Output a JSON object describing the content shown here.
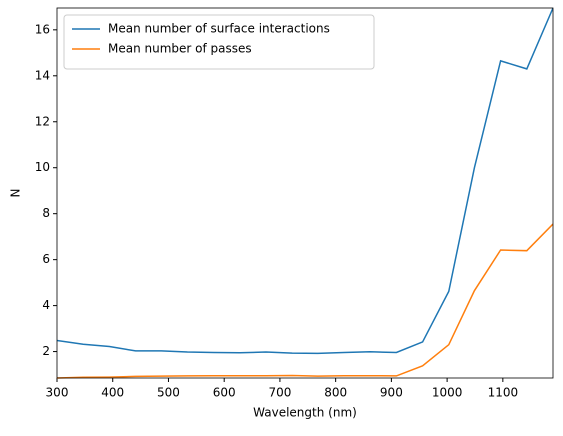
{
  "chart_data": {
    "type": "line",
    "x_label": "Wavelength (nm)",
    "y_label": "N",
    "x": [
      300,
      347,
      394,
      441,
      487,
      534,
      581,
      628,
      675,
      722,
      768,
      815,
      862,
      909,
      956,
      1003,
      1049,
      1096,
      1143,
      1190
    ],
    "series": [
      {
        "name": "Mean number of surface interactions",
        "color": "#1f77b4",
        "values": [
          2.48,
          2.32,
          2.22,
          2.03,
          2.03,
          1.98,
          1.96,
          1.95,
          1.98,
          1.93,
          1.92,
          1.96,
          1.99,
          1.96,
          2.42,
          4.62,
          10.0,
          14.65,
          14.3,
          16.95
        ]
      },
      {
        "name": "Mean number of passes",
        "color": "#ff7f0e",
        "values": [
          0.85,
          0.88,
          0.89,
          0.92,
          0.93,
          0.94,
          0.95,
          0.95,
          0.95,
          0.96,
          0.93,
          0.95,
          0.95,
          0.94,
          1.38,
          2.3,
          4.65,
          6.42,
          6.39,
          7.55
        ]
      }
    ],
    "xlim": [
      300,
      1190
    ],
    "xticks": [
      300,
      400,
      500,
      600,
      700,
      800,
      900,
      1000,
      1100
    ],
    "ylim": [
      0.85,
      16.95
    ],
    "yticks": [
      2,
      4,
      6,
      8,
      10,
      12,
      14,
      16
    ],
    "legend": "upper-left"
  }
}
